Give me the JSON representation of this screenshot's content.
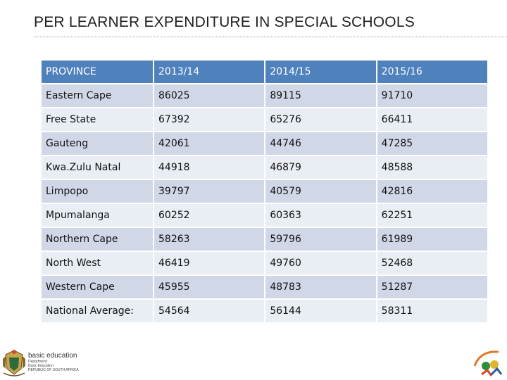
{
  "slide": {
    "title": "PER LEARNER EXPENDITURE IN SPECIAL SCHOOLS"
  },
  "table": {
    "headers": [
      "PROVINCE",
      "2013/14",
      "2014/15",
      "2015/16"
    ],
    "rows": [
      [
        "Eastern Cape",
        "86025",
        "89115",
        "91710"
      ],
      [
        "Free State",
        "67392",
        "65276",
        "66411"
      ],
      [
        "Gauteng",
        "42061",
        "44746",
        "47285"
      ],
      [
        "Kwa.Zulu Natal",
        "44918",
        "46879",
        "48588"
      ],
      [
        "Limpopo",
        "39797",
        "40579",
        "42816"
      ],
      [
        "Mpumalanga",
        "60252",
        "60363",
        "62251"
      ],
      [
        "Northern Cape",
        "58263",
        "59796",
        "61989"
      ],
      [
        "North West",
        "46419",
        "49760",
        "52468"
      ],
      [
        "Western Cape",
        "45955",
        "48783",
        "51287"
      ],
      [
        "National Average:",
        "54564",
        "56144",
        "58311"
      ]
    ]
  },
  "footer": {
    "brand": "basic education",
    "department_lines": [
      "Department:",
      "Basic Education",
      "REPUBLIC OF SOUTH AFRICA"
    ]
  },
  "colors": {
    "header_fill": "#4f81bd",
    "row_fill_odd": "#d0d8e8",
    "row_fill_even": "#e9edf4"
  }
}
